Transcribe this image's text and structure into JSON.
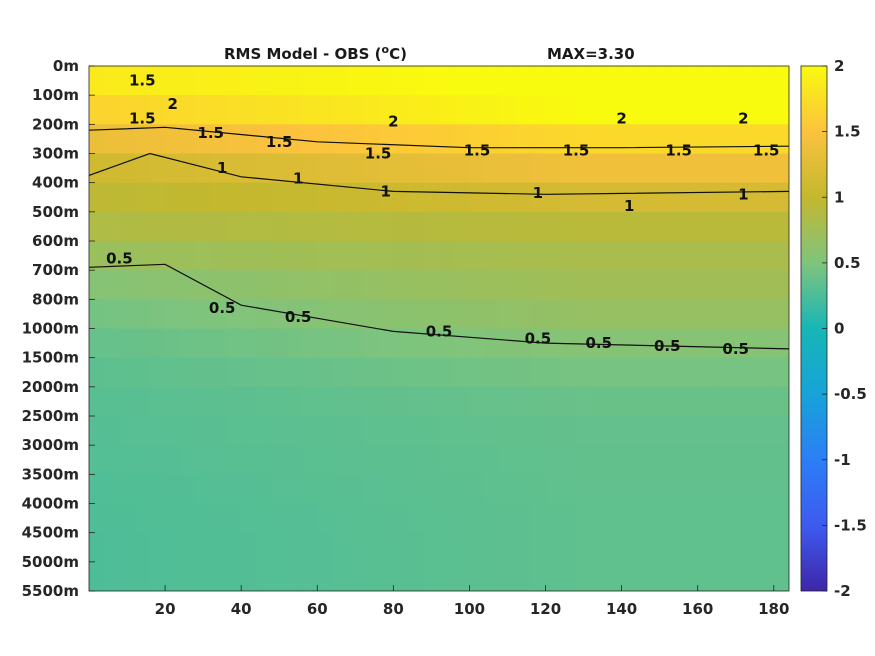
{
  "chart_data": {
    "type": "heatmap",
    "title": "RMS Model - OBS (°C)",
    "title_main": "RMS Model - OBS (",
    "title_sup": "o",
    "title_end": "C)",
    "max_label": "MAX=3.30",
    "colormap": "parula",
    "xlim": [
      0,
      184
    ],
    "x_ticks": [
      20,
      40,
      60,
      80,
      100,
      120,
      140,
      160,
      180
    ],
    "x_tick_labels": [
      "20",
      "40",
      "60",
      "80",
      "100",
      "120",
      "140",
      "160",
      "180"
    ],
    "y_tick_labels": [
      "0m",
      "100m",
      "200m",
      "300m",
      "400m",
      "500m",
      "600m",
      "700m",
      "800m",
      "1000m",
      "1500m",
      "2000m",
      "2500m",
      "3000m",
      "3500m",
      "4000m",
      "4500m",
      "5000m",
      "5500m"
    ],
    "clim": [
      -2,
      2
    ],
    "colorbar_ticks": [
      2,
      1.5,
      1,
      0.5,
      0,
      -0.5,
      -1,
      -1.5,
      -2
    ],
    "colorbar_tick_labels": [
      "2",
      "1.5",
      "1",
      "0.5",
      "0",
      "-0.5",
      "-1",
      "-1.5",
      "-2"
    ],
    "depth_profile": {
      "levels": [
        "0m",
        "100m",
        "200m",
        "300m",
        "400m",
        "500m",
        "600m",
        "700m",
        "800m",
        "1000m",
        "1500m",
        "2000m",
        "2500m",
        "3000m",
        "3500m",
        "4000m",
        "4500m",
        "5000m",
        "5500m"
      ],
      "rms_left": [
        1.9,
        1.8,
        1.5,
        1.2,
        1.0,
        0.9,
        0.8,
        0.6,
        0.5,
        0.4,
        0.35,
        0.32,
        0.3,
        0.3,
        0.28,
        0.27,
        0.26,
        0.26,
        0.26
      ],
      "rms_right": [
        2.0,
        2.1,
        1.9,
        1.5,
        1.3,
        1.0,
        0.85,
        0.78,
        0.72,
        0.62,
        0.5,
        0.42,
        0.38,
        0.36,
        0.36,
        0.35,
        0.35,
        0.35,
        0.35
      ]
    },
    "contours": [
      {
        "level": 1.5,
        "label": "1.5",
        "x": [
          0,
          20,
          60,
          100,
          140,
          184
        ],
        "depth_index": [
          2.2,
          2.1,
          2.6,
          2.8,
          2.8,
          2.75
        ]
      },
      {
        "level": 1,
        "label": "1",
        "x": [
          0,
          16,
          40,
          80,
          120,
          184
        ],
        "depth_index": [
          3.75,
          3.0,
          3.8,
          4.3,
          4.4,
          4.3
        ]
      },
      {
        "level": 0.5,
        "label": "0.5",
        "x": [
          0,
          20,
          40,
          80,
          120,
          184
        ],
        "depth_index": [
          6.9,
          6.8,
          8.2,
          9.1,
          9.5,
          9.7
        ]
      }
    ],
    "contour_labels": [
      {
        "text": "1.5",
        "x": 14,
        "depth_index": 0.5
      },
      {
        "text": "2",
        "x": 22,
        "depth_index": 1.3
      },
      {
        "text": "1.5",
        "x": 14,
        "depth_index": 1.8
      },
      {
        "text": "1.5",
        "x": 32,
        "depth_index": 2.3
      },
      {
        "text": "1.5",
        "x": 50,
        "depth_index": 2.6
      },
      {
        "text": "1.5",
        "x": 76,
        "depth_index": 3.0
      },
      {
        "text": "1.5",
        "x": 102,
        "depth_index": 2.9
      },
      {
        "text": "1.5",
        "x": 128,
        "depth_index": 2.9
      },
      {
        "text": "1.5",
        "x": 155,
        "depth_index": 2.9
      },
      {
        "text": "1.5",
        "x": 178,
        "depth_index": 2.9
      },
      {
        "text": "2",
        "x": 80,
        "depth_index": 1.9
      },
      {
        "text": "2",
        "x": 140,
        "depth_index": 1.8
      },
      {
        "text": "2",
        "x": 172,
        "depth_index": 1.8
      },
      {
        "text": "1",
        "x": 35,
        "depth_index": 3.5
      },
      {
        "text": "1",
        "x": 55,
        "depth_index": 3.85
      },
      {
        "text": "1",
        "x": 78,
        "depth_index": 4.3
      },
      {
        "text": "1",
        "x": 118,
        "depth_index": 4.35
      },
      {
        "text": "1",
        "x": 142,
        "depth_index": 4.8
      },
      {
        "text": "1",
        "x": 172,
        "depth_index": 4.4
      },
      {
        "text": "0.5",
        "x": 8,
        "depth_index": 6.6
      },
      {
        "text": "0.5",
        "x": 35,
        "depth_index": 8.3
      },
      {
        "text": "0.5",
        "x": 55,
        "depth_index": 8.6
      },
      {
        "text": "0.5",
        "x": 92,
        "depth_index": 9.1
      },
      {
        "text": "0.5",
        "x": 118,
        "depth_index": 9.35
      },
      {
        "text": "0.5",
        "x": 134,
        "depth_index": 9.5
      },
      {
        "text": "0.5",
        "x": 152,
        "depth_index": 9.6
      },
      {
        "text": "0.5",
        "x": 170,
        "depth_index": 9.7
      }
    ]
  }
}
